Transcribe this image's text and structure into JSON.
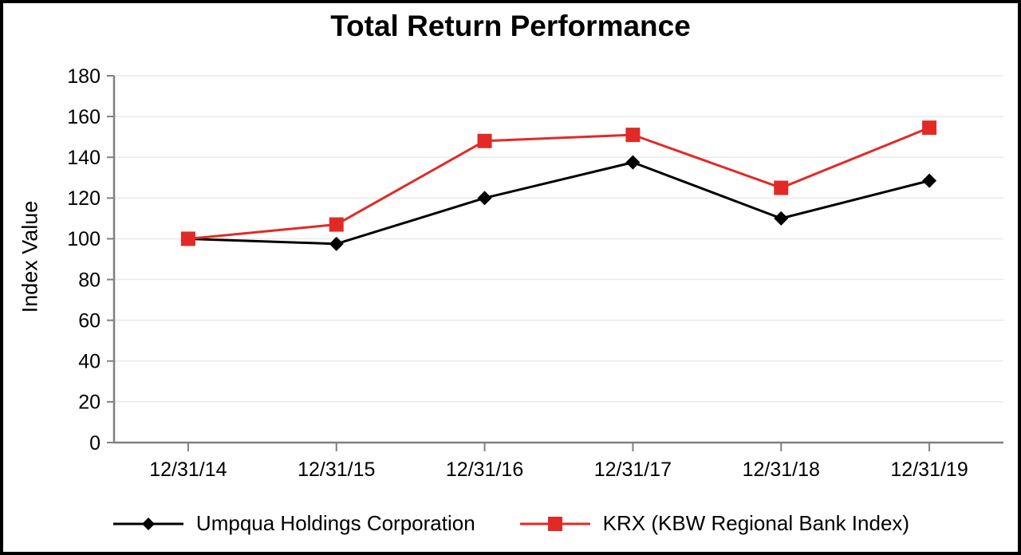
{
  "window": {
    "background": "#FFFFFF",
    "frame_border_color": "#000000"
  },
  "chart_data": {
    "type": "line",
    "title": "Total Return Performance",
    "ylabel": "Index Value",
    "xlabel": "",
    "categories": [
      "12/31/14",
      "12/31/15",
      "12/31/16",
      "12/31/17",
      "12/31/18",
      "12/31/19"
    ],
    "series": [
      {
        "name": "Umpqua Holdings Corporation",
        "color": "#000000",
        "marker": "diamond",
        "values": [
          100,
          97.5,
          120,
          137.5,
          110,
          128.5
        ]
      },
      {
        "name": "KRX (KBW Regional Bank Index)",
        "color": "#E12A26",
        "marker": "square",
        "values": [
          100,
          107,
          148,
          151,
          125,
          154.5
        ]
      }
    ],
    "ylim": [
      0,
      180
    ],
    "ytick_step": 20,
    "grid": true,
    "legend_position": "bottom",
    "gridline_color": "#E9E9E9",
    "axis_color": "#808080",
    "tick_label_color": "#000000",
    "tick_font_size": 25,
    "line_width": 3
  }
}
